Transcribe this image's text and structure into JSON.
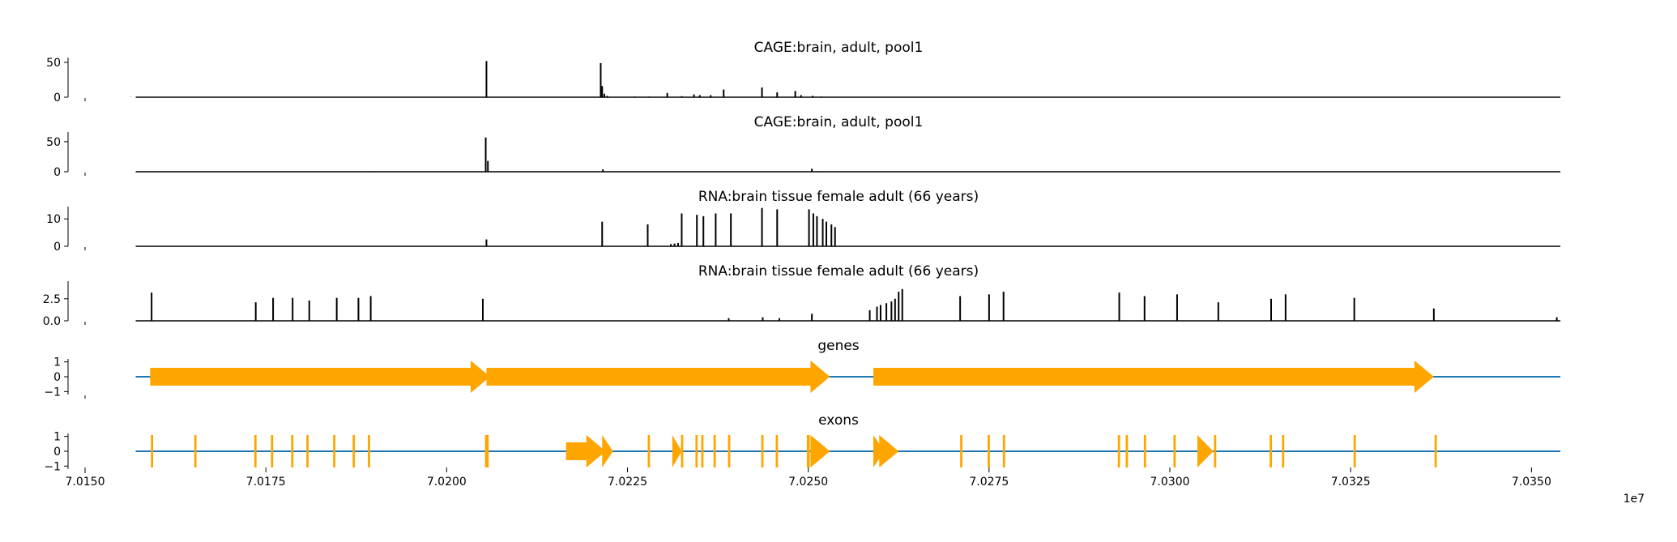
{
  "chart_data": {
    "type": "line",
    "x_label": "",
    "x_offset_label": "1e7",
    "x_ticks": [
      "7.0150",
      "7.0175",
      "7.0200",
      "7.0225",
      "7.0250",
      "7.0275",
      "7.0300",
      "7.0325",
      "7.0350"
    ],
    "x_tick_values": [
      70150000,
      70175000,
      70200000,
      70225000,
      70250000,
      70275000,
      70300000,
      70325000,
      70350000
    ],
    "x_domain": [
      70150000,
      70355000
    ],
    "data_range": [
      70157000,
      70354000
    ],
    "colors": {
      "signal": "#000000",
      "feature": "#ffa500",
      "baseline": "#1f77b4"
    },
    "tracks": [
      {
        "title": "CAGE:brain, adult, pool1",
        "kind": "signal",
        "ylim": [
          0,
          57
        ],
        "y_ticks": [
          "50",
          "0"
        ],
        "y_tick_values": [
          50,
          0
        ],
        "peaks": [
          [
            70156300,
            0.3
          ],
          [
            70160500,
            0.6
          ],
          [
            70194500,
            0.5
          ],
          [
            70198300,
            0.3
          ],
          [
            70205500,
            52
          ],
          [
            70221300,
            49
          ],
          [
            70221500,
            16
          ],
          [
            70221800,
            5
          ],
          [
            70222200,
            2
          ],
          [
            70226000,
            1
          ],
          [
            70228000,
            1
          ],
          [
            70230500,
            6
          ],
          [
            70232500,
            1.5
          ],
          [
            70234200,
            4
          ],
          [
            70235000,
            3
          ],
          [
            70236500,
            3
          ],
          [
            70238300,
            11
          ],
          [
            70243600,
            14
          ],
          [
            70245700,
            7
          ],
          [
            70248200,
            9
          ],
          [
            70249000,
            3
          ],
          [
            70250600,
            2
          ],
          [
            70251800,
            1
          ],
          [
            70253000,
            0.5
          ],
          [
            70256000,
            0.3
          ],
          [
            70300000,
            0.3
          ],
          [
            70320000,
            0.3
          ]
        ]
      },
      {
        "title": "CAGE:brain, adult, pool1",
        "kind": "signal",
        "ylim": [
          0,
          66
        ],
        "y_ticks": [
          "50",
          "0"
        ],
        "y_tick_values": [
          50,
          0
        ],
        "peaks": [
          [
            70160000,
            0.4
          ],
          [
            70190000,
            0.8
          ],
          [
            70205400,
            57
          ],
          [
            70205700,
            18
          ],
          [
            70221600,
            4
          ],
          [
            70250500,
            5
          ],
          [
            70252000,
            0.8
          ]
        ]
      },
      {
        "title": "RNA:brain tissue female adult (66 years)",
        "kind": "signal",
        "ylim": [
          0,
          14.5
        ],
        "y_ticks": [
          "10",
          "0"
        ],
        "y_tick_values": [
          10,
          0
        ],
        "peaks": [
          [
            70205500,
            2.5
          ],
          [
            70221500,
            9
          ],
          [
            70227800,
            8
          ],
          [
            70231000,
            0.8
          ],
          [
            70231500,
            1
          ],
          [
            70232000,
            1.2
          ],
          [
            70232500,
            12
          ],
          [
            70234600,
            11.5
          ],
          [
            70235500,
            11
          ],
          [
            70237200,
            12
          ],
          [
            70239300,
            12
          ],
          [
            70243600,
            14
          ],
          [
            70245700,
            13.5
          ],
          [
            70250100,
            13.5
          ],
          [
            70250700,
            12
          ],
          [
            70251200,
            11
          ],
          [
            70252000,
            10
          ],
          [
            70252500,
            9
          ],
          [
            70253200,
            8
          ],
          [
            70253700,
            7
          ]
        ]
      },
      {
        "title": "RNA:brain tissue female adult (66 years)",
        "kind": "signal",
        "ylim": [
          0,
          4.5
        ],
        "y_ticks": [
          "2.5",
          "0.0"
        ],
        "y_tick_values": [
          2.5,
          0.0
        ],
        "peaks": [
          [
            70159200,
            3.2
          ],
          [
            70173600,
            2.1
          ],
          [
            70176000,
            2.6
          ],
          [
            70178700,
            2.6
          ],
          [
            70181000,
            2.3
          ],
          [
            70184800,
            2.6
          ],
          [
            70187800,
            2.6
          ],
          [
            70189500,
            2.8
          ],
          [
            70205000,
            2.5
          ],
          [
            70239000,
            0.3
          ],
          [
            70243700,
            0.4
          ],
          [
            70246000,
            0.3
          ],
          [
            70250500,
            0.8
          ],
          [
            70258500,
            1.2
          ],
          [
            70259500,
            1.6
          ],
          [
            70260000,
            1.8
          ],
          [
            70260800,
            2.0
          ],
          [
            70261500,
            2.2
          ],
          [
            70262000,
            2.5
          ],
          [
            70262500,
            3.3
          ],
          [
            70263000,
            3.6
          ],
          [
            70271000,
            2.8
          ],
          [
            70275000,
            3.0
          ],
          [
            70277000,
            3.3
          ],
          [
            70293000,
            3.2
          ],
          [
            70296500,
            2.8
          ],
          [
            70301000,
            3.0
          ],
          [
            70306700,
            2.1
          ],
          [
            70314000,
            2.5
          ],
          [
            70316000,
            3.0
          ],
          [
            70325500,
            2.6
          ],
          [
            70336500,
            1.4
          ],
          [
            70353500,
            0.4
          ]
        ]
      },
      {
        "title": "genes",
        "kind": "features",
        "ylim": [
          -1.2,
          1.2
        ],
        "y_ticks": [
          "1",
          "0",
          "−1"
        ],
        "y_tick_values": [
          1,
          0,
          -1
        ],
        "features": [
          {
            "start": 70159000,
            "end": 70206000,
            "strand": "+"
          },
          {
            "start": 70205500,
            "end": 70253000,
            "strand": "+"
          },
          {
            "start": 70259000,
            "end": 70336500,
            "strand": "+"
          }
        ]
      },
      {
        "title": "exons",
        "kind": "features",
        "ylim": [
          -1.2,
          1.2
        ],
        "y_ticks": [
          "1",
          "0",
          "−1"
        ],
        "y_tick_values": [
          1,
          0,
          -1
        ],
        "features": [
          {
            "start": 70159100,
            "end": 70159300,
            "strand": "+"
          },
          {
            "start": 70165100,
            "end": 70165300,
            "strand": "+"
          },
          {
            "start": 70173400,
            "end": 70173600,
            "strand": "+"
          },
          {
            "start": 70175700,
            "end": 70175900,
            "strand": "+"
          },
          {
            "start": 70178500,
            "end": 70178700,
            "strand": "+"
          },
          {
            "start": 70180600,
            "end": 70180800,
            "strand": "+"
          },
          {
            "start": 70184300,
            "end": 70184500,
            "strand": "+"
          },
          {
            "start": 70187000,
            "end": 70187200,
            "strand": "+"
          },
          {
            "start": 70189100,
            "end": 70189300,
            "strand": "+"
          },
          {
            "start": 70205300,
            "end": 70205700,
            "strand": "+"
          },
          {
            "start": 70216500,
            "end": 70222000,
            "strand": "+"
          },
          {
            "start": 70221500,
            "end": 70223000,
            "strand": "+"
          },
          {
            "start": 70227800,
            "end": 70228000,
            "strand": "+"
          },
          {
            "start": 70231200,
            "end": 70232500,
            "strand": "+"
          },
          {
            "start": 70232400,
            "end": 70232600,
            "strand": "+"
          },
          {
            "start": 70234400,
            "end": 70234600,
            "strand": "+"
          },
          {
            "start": 70235200,
            "end": 70235400,
            "strand": "+"
          },
          {
            "start": 70236900,
            "end": 70237100,
            "strand": "+"
          },
          {
            "start": 70238900,
            "end": 70239100,
            "strand": "+"
          },
          {
            "start": 70243500,
            "end": 70243700,
            "strand": "+"
          },
          {
            "start": 70245500,
            "end": 70245700,
            "strand": "+"
          },
          {
            "start": 70249800,
            "end": 70250100,
            "strand": "+"
          },
          {
            "start": 70250300,
            "end": 70253000,
            "strand": "+"
          },
          {
            "start": 70259000,
            "end": 70260500,
            "strand": "+"
          },
          {
            "start": 70259800,
            "end": 70262500,
            "strand": "+"
          },
          {
            "start": 70271000,
            "end": 70271200,
            "strand": "+"
          },
          {
            "start": 70274800,
            "end": 70275000,
            "strand": "+"
          },
          {
            "start": 70276900,
            "end": 70277100,
            "strand": "+"
          },
          {
            "start": 70292800,
            "end": 70293000,
            "strand": "+"
          },
          {
            "start": 70293900,
            "end": 70294100,
            "strand": "+"
          },
          {
            "start": 70296400,
            "end": 70296600,
            "strand": "+"
          },
          {
            "start": 70300500,
            "end": 70300700,
            "strand": "+"
          },
          {
            "start": 70303800,
            "end": 70306000,
            "strand": "+"
          },
          {
            "start": 70306100,
            "end": 70306300,
            "strand": "+"
          },
          {
            "start": 70313800,
            "end": 70314000,
            "strand": "+"
          },
          {
            "start": 70315500,
            "end": 70315700,
            "strand": "+"
          },
          {
            "start": 70325400,
            "end": 70325600,
            "strand": "+"
          },
          {
            "start": 70336600,
            "end": 70336800,
            "strand": "+"
          }
        ]
      }
    ]
  }
}
